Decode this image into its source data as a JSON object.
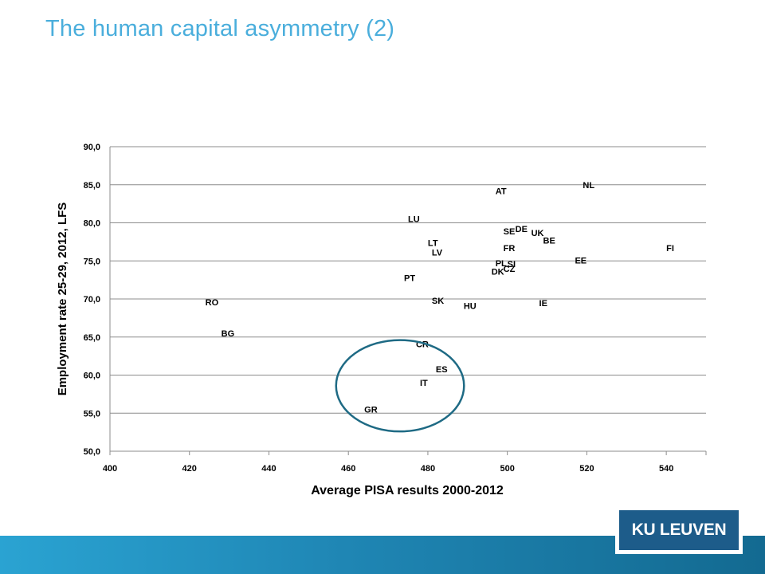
{
  "slide": {
    "title": "The human capital asymmetry (2)",
    "logo_text": "KU LEUVEN"
  },
  "colors": {
    "title": "#4aaedc",
    "highlight_circle": "#1e6a84",
    "footer_band": "#1f86b4",
    "logo_background": "#1d5c8a"
  },
  "chart_data": {
    "type": "scatter",
    "title": "",
    "xlabel": "Average PISA results 2000-2012",
    "ylabel": "Employment rate 25-29, 2012, LFS",
    "xlim": [
      400,
      550
    ],
    "ylim": [
      50,
      90
    ],
    "x_ticks": [
      "400",
      "420",
      "440",
      "460",
      "480",
      "500",
      "520",
      "540"
    ],
    "y_ticks": [
      "50,0",
      "55,0",
      "60,0",
      "65,0",
      "70,0",
      "75,0",
      "80,0",
      "85,0",
      "90,0"
    ],
    "grid": "horizontal",
    "markers": "labels only",
    "points": [
      {
        "label": "NL",
        "x": 519,
        "y": 85.0
      },
      {
        "label": "AT",
        "x": 497,
        "y": 84.2
      },
      {
        "label": "LU",
        "x": 475,
        "y": 80.5
      },
      {
        "label": "SE",
        "x": 499,
        "y": 78.9
      },
      {
        "label": "DE",
        "x": 502,
        "y": 79.2
      },
      {
        "label": "UK",
        "x": 506,
        "y": 78.7
      },
      {
        "label": "BE",
        "x": 509,
        "y": 77.7
      },
      {
        "label": "LT",
        "x": 480,
        "y": 77.4
      },
      {
        "label": "FR",
        "x": 499,
        "y": 76.7
      },
      {
        "label": "FI",
        "x": 540,
        "y": 76.7
      },
      {
        "label": "LV",
        "x": 481,
        "y": 76.1
      },
      {
        "label": "EE",
        "x": 517,
        "y": 75.1
      },
      {
        "label": "PL",
        "x": 497,
        "y": 74.7
      },
      {
        "label": "SI",
        "x": 500,
        "y": 74.6
      },
      {
        "label": "CZ",
        "x": 499,
        "y": 74.0
      },
      {
        "label": "DK",
        "x": 496,
        "y": 73.6
      },
      {
        "label": "PT",
        "x": 474,
        "y": 72.8
      },
      {
        "label": "RO",
        "x": 424,
        "y": 69.6
      },
      {
        "label": "SK",
        "x": 481,
        "y": 69.8
      },
      {
        "label": "HU",
        "x": 489,
        "y": 69.1
      },
      {
        "label": "IE",
        "x": 508,
        "y": 69.5
      },
      {
        "label": "BG",
        "x": 428,
        "y": 65.5
      },
      {
        "label": "CR",
        "x": 477,
        "y": 64.1
      },
      {
        "label": "ES",
        "x": 482,
        "y": 60.8
      },
      {
        "label": "IT",
        "x": 478,
        "y": 59.0
      },
      {
        "label": "GR",
        "x": 464,
        "y": 55.5
      }
    ],
    "annotations": [
      {
        "type": "ellipse",
        "cx": 473,
        "cy": 58.6,
        "rx": 16.1,
        "ry": 6.0
      }
    ]
  }
}
